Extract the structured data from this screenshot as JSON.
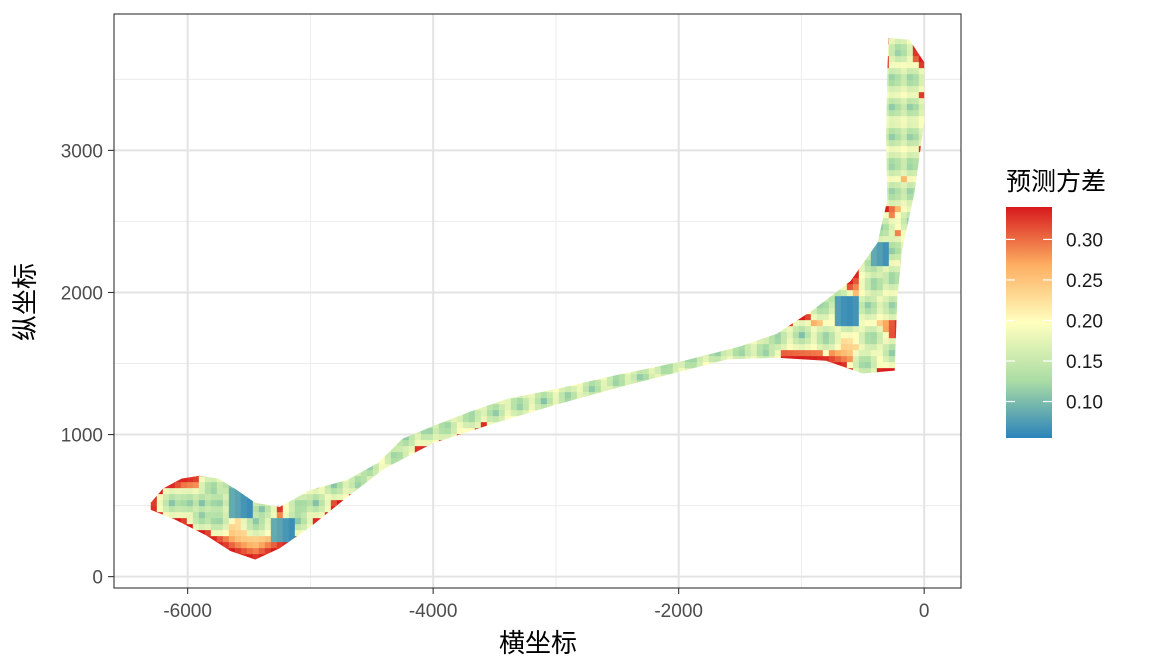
{
  "chart_data": {
    "type": "heatmap",
    "title": "",
    "xlabel": "横坐标",
    "ylabel": "纵坐标",
    "xlim": [
      -6600,
      300
    ],
    "ylim": [
      -80,
      3960
    ],
    "x_ticks": [
      {
        "value": -6000,
        "label": "-6000"
      },
      {
        "value": -4000,
        "label": "-4000"
      },
      {
        "value": -2000,
        "label": "-2000"
      },
      {
        "value": 0,
        "label": "0"
      }
    ],
    "y_ticks": [
      {
        "value": 0,
        "label": "0"
      },
      {
        "value": 1000,
        "label": "1000"
      },
      {
        "value": 2000,
        "label": "2000"
      },
      {
        "value": 3000,
        "label": "3000"
      }
    ],
    "grid": true,
    "legend": {
      "title": "预测方差",
      "position": "right",
      "range": [
        0.055,
        0.34
      ],
      "breaks": [
        {
          "value": 0.3,
          "label": "0.30"
        },
        {
          "value": 0.25,
          "label": "0.25"
        },
        {
          "value": 0.2,
          "label": "0.20"
        },
        {
          "value": 0.15,
          "label": "0.15"
        },
        {
          "value": 0.1,
          "label": "0.10"
        }
      ],
      "palette": [
        "#2b83ba",
        "#abdda4",
        "#ffffbf",
        "#fdae61",
        "#d7191c"
      ]
    },
    "region_outline": [
      [
        -6300,
        520
      ],
      [
        -6200,
        620
      ],
      [
        -6050,
        690
      ],
      [
        -5900,
        710
      ],
      [
        -5750,
        690
      ],
      [
        -5600,
        610
      ],
      [
        -5450,
        520
      ],
      [
        -5250,
        490
      ],
      [
        -5000,
        610
      ],
      [
        -4700,
        680
      ],
      [
        -4450,
        800
      ],
      [
        -4250,
        970
      ],
      [
        -4000,
        1060
      ],
      [
        -3700,
        1160
      ],
      [
        -3400,
        1250
      ],
      [
        -3000,
        1320
      ],
      [
        -2500,
        1420
      ],
      [
        -2000,
        1510
      ],
      [
        -1500,
        1620
      ],
      [
        -1200,
        1710
      ],
      [
        -900,
        1880
      ],
      [
        -600,
        2080
      ],
      [
        -380,
        2350
      ],
      [
        -300,
        2650
      ],
      [
        -310,
        3100
      ],
      [
        -300,
        3550
      ],
      [
        -290,
        3790
      ],
      [
        -120,
        3780
      ],
      [
        0,
        3620
      ],
      [
        0,
        3200
      ],
      [
        -80,
        2700
      ],
      [
        -180,
        2300
      ],
      [
        -220,
        1950
      ],
      [
        -240,
        1450
      ],
      [
        -500,
        1430
      ],
      [
        -800,
        1520
      ],
      [
        -1200,
        1540
      ],
      [
        -1600,
        1530
      ],
      [
        -2000,
        1440
      ],
      [
        -2500,
        1330
      ],
      [
        -3000,
        1210
      ],
      [
        -3500,
        1080
      ],
      [
        -4000,
        940
      ],
      [
        -4400,
        760
      ],
      [
        -4700,
        560
      ],
      [
        -5000,
        350
      ],
      [
        -5250,
        200
      ],
      [
        -5450,
        120
      ],
      [
        -5650,
        180
      ],
      [
        -5850,
        290
      ],
      [
        -6100,
        400
      ],
      [
        -6300,
        470
      ]
    ],
    "variance_field": {
      "background": 0.2,
      "edge_max": 0.34,
      "point_min": 0.1,
      "sample_points": [
        [
          -6000,
          520
        ],
        [
          -5880,
          520
        ],
        [
          -5760,
          520
        ],
        [
          -5400,
          470
        ],
        [
          -6120,
          520
        ],
        [
          -5880,
          420
        ],
        [
          -5760,
          400
        ],
        [
          -5440,
          380
        ],
        [
          -5800,
          620
        ],
        [
          -5640,
          640
        ],
        [
          -5100,
          400
        ],
        [
          -5080,
          500
        ],
        [
          -4960,
          520
        ],
        [
          -4800,
          640
        ],
        [
          -4600,
          660
        ],
        [
          -4530,
          760
        ],
        [
          -4300,
          840
        ],
        [
          -4230,
          970
        ],
        [
          -4050,
          1030
        ],
        [
          -3900,
          1050
        ],
        [
          -3700,
          1130
        ],
        [
          -3500,
          1160
        ],
        [
          -3300,
          1210
        ],
        [
          -3100,
          1240
        ],
        [
          -2900,
          1260
        ],
        [
          -2700,
          1330
        ],
        [
          -2500,
          1380
        ],
        [
          -2300,
          1400
        ],
        [
          -2100,
          1470
        ],
        [
          -1900,
          1520
        ],
        [
          -1700,
          1580
        ],
        [
          -1500,
          1590
        ],
        [
          -1300,
          1590
        ],
        [
          -1200,
          1680
        ],
        [
          -1000,
          1700
        ],
        [
          -800,
          1680
        ],
        [
          -830,
          1900
        ],
        [
          -430,
          1680
        ],
        [
          -480,
          1500
        ],
        [
          -250,
          1580
        ],
        [
          -250,
          1900
        ],
        [
          -400,
          2060
        ],
        [
          -250,
          2100
        ],
        [
          -250,
          2300
        ],
        [
          -100,
          2500
        ],
        [
          -100,
          2700
        ],
        [
          -250,
          2700
        ],
        [
          -100,
          2900
        ],
        [
          -250,
          2900
        ],
        [
          -100,
          3100
        ],
        [
          -250,
          3100
        ],
        [
          -100,
          3300
        ],
        [
          -250,
          3300
        ],
        [
          -100,
          3500
        ],
        [
          -250,
          3500
        ],
        [
          -200,
          3700
        ],
        [
          -620,
          1800
        ],
        [
          -450,
          1900
        ],
        [
          -700,
          1950
        ],
        [
          -350,
          2450
        ],
        [
          -420,
          2200
        ]
      ],
      "low_blocks": [
        {
          "x": [
            -5680,
            -5480
          ],
          "y": [
            410,
            620
          ]
        },
        {
          "x": [
            -5320,
            -5120
          ],
          "y": [
            240,
            420
          ]
        },
        {
          "x": [
            -720,
            -520
          ],
          "y": [
            1780,
            1980
          ]
        },
        {
          "x": [
            -450,
            -300
          ],
          "y": [
            2200,
            2370
          ]
        }
      ]
    }
  }
}
